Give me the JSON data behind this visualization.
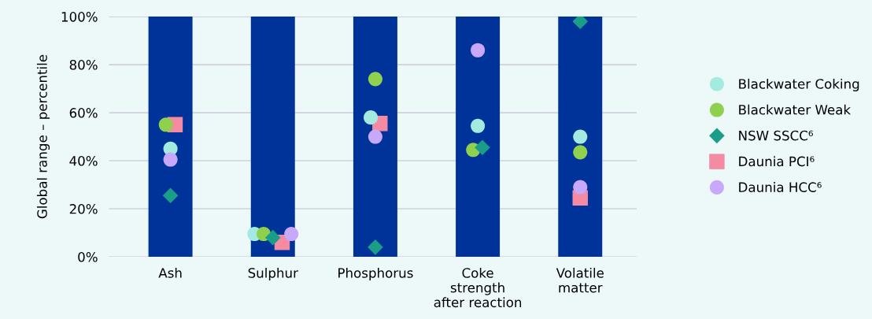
{
  "chart_data": {
    "ylabel": "Global range – percentile",
    "type": "scatter",
    "categories": [
      "Ash",
      "Sulphur",
      "Phosphorus",
      "Coke\nstrength\nafter reaction",
      "Volatile\nmatter"
    ],
    "ylim": [
      0,
      100
    ],
    "yticks": [
      {
        "value": 0,
        "label": "0%"
      },
      {
        "value": 20,
        "label": "20%"
      },
      {
        "value": 40,
        "label": "40%"
      },
      {
        "value": 60,
        "label": "60%"
      },
      {
        "value": 80,
        "label": "80%"
      },
      {
        "value": 100,
        "label": "100%"
      }
    ],
    "grid": "y",
    "legend": "right",
    "series": [
      {
        "type": "bar",
        "color": "#003399",
        "values": [
          100,
          100,
          100,
          100,
          100
        ]
      },
      {
        "name": "Blackwater Coking",
        "color": "#a3ebe0",
        "marker": "circle",
        "values": [
          45,
          9.5,
          58,
          54.5,
          50
        ]
      },
      {
        "type": "scatter",
        "name": "Blackwater Weak",
        "color": "#8fd14f",
        "marker": "circle",
        "values": [
          55,
          9.5,
          74,
          44.5,
          43.5
        ]
      },
      {
        "type": "scatter",
        "name": "NSW SSCC⁶",
        "color": "#1a9e88",
        "marker": "diamond",
        "values": [
          25.5,
          8,
          4,
          45.5,
          98
        ]
      },
      {
        "type": "scatter",
        "name": "Daunia PCI⁶",
        "color": "#f48ba2",
        "marker": "square",
        "values": [
          55,
          6,
          55.5,
          null,
          24.5
        ]
      },
      {
        "type": "scatter",
        "name": "Daunia HCC⁶",
        "color": "#c8a8fb",
        "marker": "circle",
        "values": [
          40.5,
          9.5,
          50,
          86,
          29
        ]
      }
    ]
  }
}
